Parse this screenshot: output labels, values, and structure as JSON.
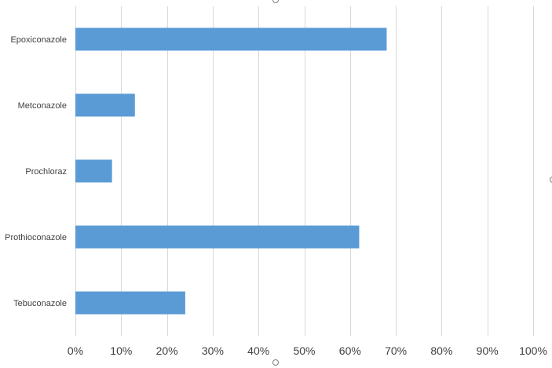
{
  "chart_data": {
    "type": "bar",
    "orientation": "horizontal",
    "title": "",
    "xlabel": "",
    "ylabel": "",
    "categories": [
      "Epoxiconazole",
      "Metconazole",
      "Prochloraz",
      "Prothioconazole",
      "Tebuconazole"
    ],
    "values": [
      0.68,
      0.13,
      0.08,
      0.62,
      0.24
    ],
    "xlim": [
      0,
      1
    ],
    "x_ticks": [
      0,
      0.1,
      0.2,
      0.3,
      0.4,
      0.5,
      0.6,
      0.7,
      0.8,
      0.9,
      1.0
    ],
    "x_tick_labels": [
      "0%",
      "10%",
      "20%",
      "30%",
      "40%",
      "50%",
      "60%",
      "70%",
      "80%",
      "90%",
      "100%"
    ],
    "grid": "vertical",
    "legend": "none",
    "bar_color": "#5b9bd5",
    "grid_color": "#d9d9d9",
    "text_color": "#404040"
  }
}
